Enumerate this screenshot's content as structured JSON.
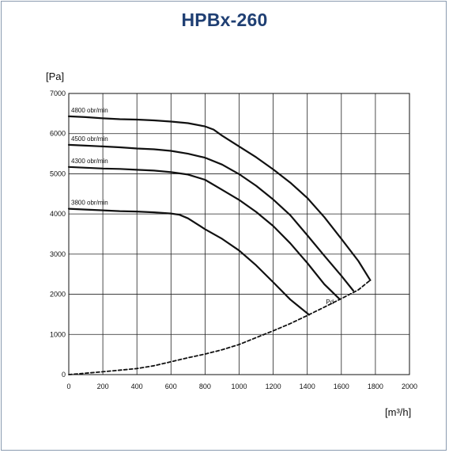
{
  "chart_data": {
    "type": "line",
    "title": "HPBx-260",
    "xlabel": "[m³/h]",
    "ylabel": "[Pa]",
    "xlim": [
      0,
      2000
    ],
    "ylim": [
      0,
      7000
    ],
    "xticks": [
      0,
      200,
      400,
      600,
      800,
      1000,
      1200,
      1400,
      1600,
      1800,
      2000
    ],
    "yticks": [
      0,
      1000,
      2000,
      3000,
      4000,
      5000,
      6000,
      7000
    ],
    "grid": true,
    "series": [
      {
        "name": "4800 obr/min",
        "style": "solid",
        "x": [
          0,
          100,
          200,
          300,
          400,
          500,
          600,
          700,
          800,
          850,
          900,
          1000,
          1100,
          1200,
          1300,
          1400,
          1500,
          1600,
          1700,
          1770
        ],
        "y": [
          6430,
          6410,
          6380,
          6360,
          6350,
          6330,
          6300,
          6260,
          6180,
          6100,
          5950,
          5680,
          5410,
          5110,
          4780,
          4400,
          3920,
          3380,
          2830,
          2350
        ]
      },
      {
        "name": "4500 obr/min",
        "style": "solid",
        "x": [
          0,
          100,
          200,
          300,
          400,
          500,
          600,
          700,
          800,
          900,
          1000,
          1100,
          1200,
          1300,
          1400,
          1500,
          1600,
          1670
        ],
        "y": [
          5720,
          5700,
          5680,
          5660,
          5630,
          5610,
          5570,
          5500,
          5400,
          5230,
          4990,
          4700,
          4360,
          3970,
          3470,
          2960,
          2460,
          2090
        ]
      },
      {
        "name": "4300 obr/min",
        "style": "solid",
        "x": [
          0,
          100,
          200,
          300,
          400,
          500,
          600,
          700,
          800,
          900,
          1000,
          1100,
          1200,
          1300,
          1400,
          1500,
          1590
        ],
        "y": [
          5170,
          5150,
          5130,
          5120,
          5100,
          5080,
          5040,
          4980,
          4850,
          4600,
          4350,
          4050,
          3700,
          3270,
          2780,
          2250,
          1880
        ]
      },
      {
        "name": "3800 obr/min",
        "style": "solid",
        "x": [
          0,
          100,
          200,
          300,
          400,
          500,
          600,
          650,
          700,
          800,
          900,
          1000,
          1100,
          1200,
          1300,
          1410
        ],
        "y": [
          4130,
          4110,
          4090,
          4070,
          4060,
          4040,
          4010,
          3980,
          3890,
          3620,
          3380,
          3090,
          2720,
          2300,
          1870,
          1490
        ]
      },
      {
        "name": "Pd",
        "style": "dashed",
        "x": [
          0,
          200,
          400,
          500,
          600,
          700,
          800,
          900,
          1000,
          1100,
          1200,
          1300,
          1400,
          1500,
          1600,
          1700,
          1770
        ],
        "y": [
          0,
          70,
          150,
          220,
          320,
          420,
          510,
          620,
          750,
          920,
          1090,
          1270,
          1470,
          1680,
          1890,
          2110,
          2350
        ]
      }
    ],
    "annotations": [
      {
        "text": "4800 obr/min",
        "series": "4800 obr/min"
      },
      {
        "text": "4500 obr/min",
        "series": "4500 obr/min"
      },
      {
        "text": "4300 obr/min",
        "series": "4300 obr/min"
      },
      {
        "text": "3800 obr/min",
        "series": "3800 obr/min"
      },
      {
        "text": "Pd",
        "series": "Pd"
      }
    ],
    "colors": {
      "title": "#1f3f73",
      "lines": "#111111",
      "grid": "#222222",
      "frame": "#8a9bb0"
    }
  }
}
